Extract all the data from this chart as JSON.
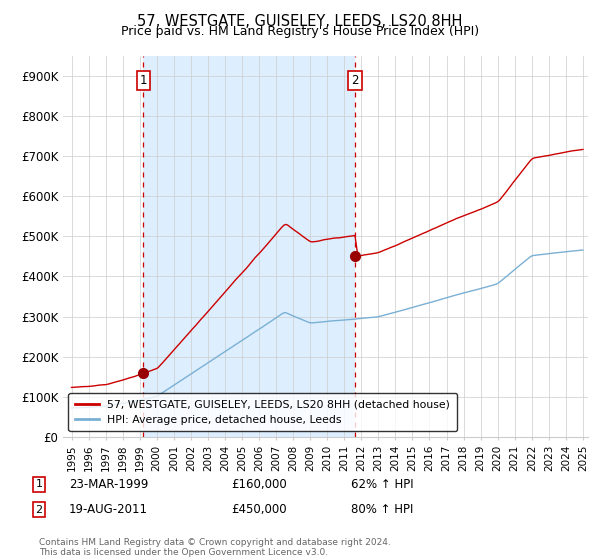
{
  "title": "57, WESTGATE, GUISELEY, LEEDS, LS20 8HH",
  "subtitle": "Price paid vs. HM Land Registry's House Price Index (HPI)",
  "ylim": [
    0,
    950000
  ],
  "yticks": [
    0,
    100000,
    200000,
    300000,
    400000,
    500000,
    600000,
    700000,
    800000,
    900000
  ],
  "ytick_labels": [
    "£0",
    "£100K",
    "£200K",
    "£300K",
    "£400K",
    "£500K",
    "£600K",
    "£700K",
    "£800K",
    "£900K"
  ],
  "line_color_red": "#cc0000",
  "line_color_blue": "#7ab0d4",
  "shade_color": "#ddeeff",
  "purchase1_x": 1999.22,
  "purchase1_y": 160000,
  "purchase2_x": 2011.63,
  "purchase2_y": 450000,
  "legend_label_red": "57, WESTGATE, GUISELEY, LEEDS, LS20 8HH (detached house)",
  "legend_label_blue": "HPI: Average price, detached house, Leeds",
  "annotation1_label": "1",
  "annotation1_date": "23-MAR-1999",
  "annotation1_price": "£160,000",
  "annotation1_hpi": "62% ↑ HPI",
  "annotation2_label": "2",
  "annotation2_date": "19-AUG-2011",
  "annotation2_price": "£450,000",
  "annotation2_hpi": "80% ↑ HPI",
  "footer": "Contains HM Land Registry data © Crown copyright and database right 2024.\nThis data is licensed under the Open Government Licence v3.0.",
  "bg_color": "#ffffff",
  "grid_color": "#cccccc",
  "xmin": 1995,
  "xmax": 2025
}
